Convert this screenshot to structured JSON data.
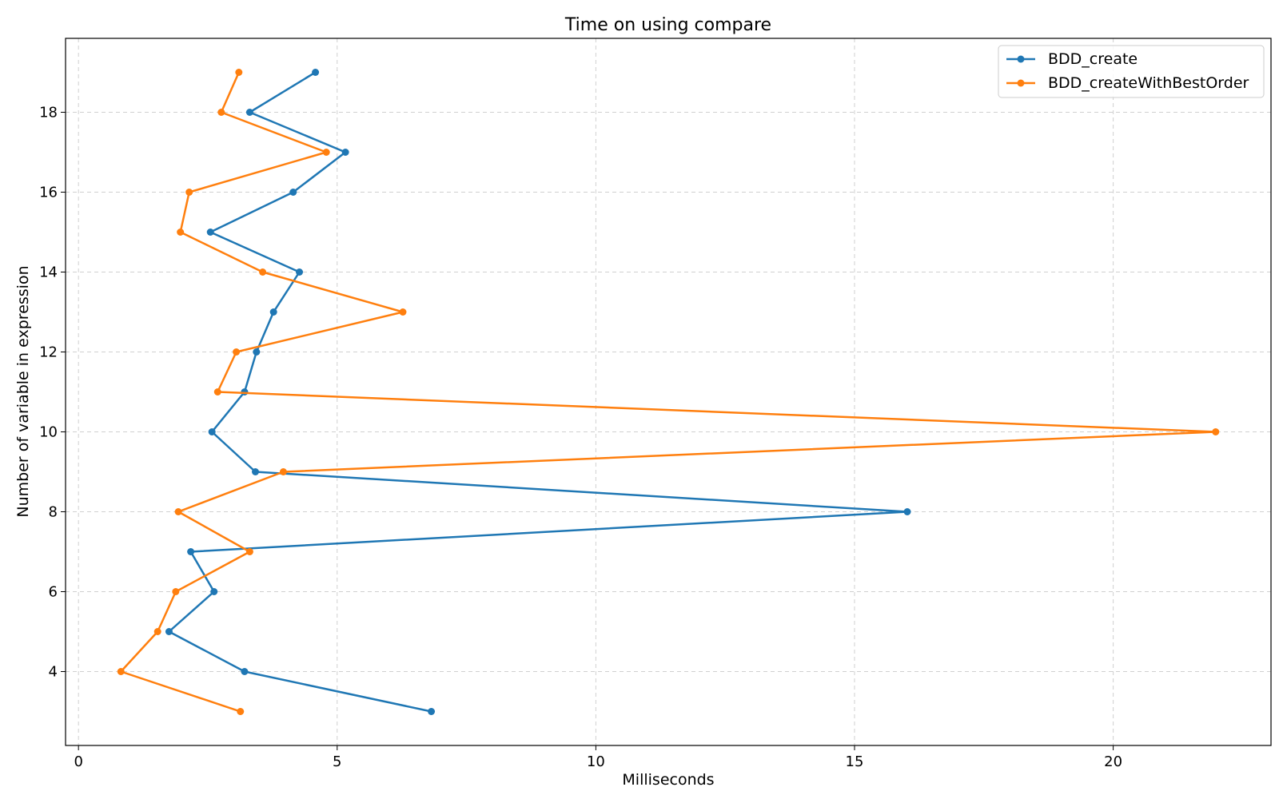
{
  "chart_data": {
    "type": "line",
    "title": "Time on using compare",
    "xlabel": "Milliseconds",
    "ylabel": "Number of variable in expression",
    "xlim": [
      -0.25,
      23.05
    ],
    "ylim": [
      2.15,
      19.85
    ],
    "xticks": [
      0,
      5,
      10,
      15,
      20
    ],
    "xtick_labels": [
      "0",
      "5",
      "10",
      "15",
      "20"
    ],
    "yticks": [
      4,
      6,
      8,
      10,
      12,
      14,
      16,
      18
    ],
    "ytick_labels": [
      "4",
      "6",
      "8",
      "10",
      "12",
      "14",
      "16",
      "18"
    ],
    "grid": true,
    "legend_position": "top-right",
    "series": [
      {
        "name": "BDD_create",
        "color": "#1f77b4",
        "marker": "circle",
        "points": [
          [
            6.82,
            3
          ],
          [
            3.21,
            4
          ],
          [
            1.75,
            5
          ],
          [
            2.62,
            6
          ],
          [
            2.17,
            7
          ],
          [
            16.02,
            8
          ],
          [
            3.42,
            9
          ],
          [
            2.58,
            10
          ],
          [
            3.21,
            11
          ],
          [
            3.44,
            12
          ],
          [
            3.77,
            13
          ],
          [
            4.27,
            14
          ],
          [
            2.55,
            15
          ],
          [
            4.15,
            16
          ],
          [
            5.16,
            17
          ],
          [
            3.31,
            18
          ],
          [
            4.58,
            19
          ]
        ]
      },
      {
        "name": "BDD_createWithBestOrder",
        "color": "#ff7f0e",
        "marker": "circle",
        "points": [
          [
            3.13,
            3
          ],
          [
            0.82,
            4
          ],
          [
            1.53,
            5
          ],
          [
            1.88,
            6
          ],
          [
            3.31,
            7
          ],
          [
            1.93,
            8
          ],
          [
            3.96,
            9
          ],
          [
            21.98,
            10
          ],
          [
            2.69,
            11
          ],
          [
            3.05,
            12
          ],
          [
            6.27,
            13
          ],
          [
            3.56,
            14
          ],
          [
            1.97,
            15
          ],
          [
            2.14,
            16
          ],
          [
            4.79,
            17
          ],
          [
            2.76,
            18
          ],
          [
            3.1,
            19
          ]
        ]
      }
    ]
  }
}
